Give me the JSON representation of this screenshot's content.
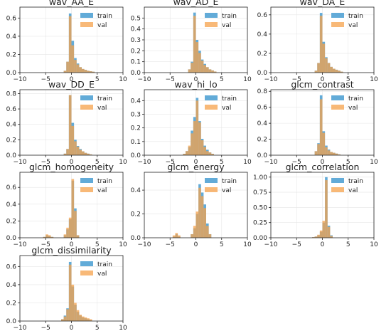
{
  "figure": {
    "colors": {
      "train": "#5aa7d6",
      "val": "#f5a24b"
    }
  },
  "chart_data": [
    {
      "type": "histogram",
      "title": "wav_AA_E",
      "xlim": [
        -10,
        10
      ],
      "ylim": [
        0,
        0.72
      ],
      "xticks": [
        "−10",
        "−5",
        "0",
        "5",
        "10"
      ],
      "yticks": [
        "0.0",
        "0.2",
        "0.4",
        "0.6"
      ],
      "grid": true,
      "legend_position": "upper-right",
      "bin_start": -1.5,
      "bin_width": 0.5,
      "series": [
        {
          "name": "train",
          "values": [
            0.02,
            0.12,
            0.65,
            0.35,
            0.16,
            0.1,
            0.06,
            0.04,
            0.03,
            0.02,
            0.015,
            0.01
          ]
        },
        {
          "name": "val",
          "values": [
            0.02,
            0.12,
            0.62,
            0.3,
            0.14,
            0.09,
            0.06,
            0.04,
            0.03,
            0.02,
            0.015,
            0.01
          ]
        }
      ]
    },
    {
      "type": "histogram",
      "title": "wav_AD_E",
      "xlim": [
        -10,
        10
      ],
      "ylim": [
        0,
        0.6
      ],
      "xticks": [
        "−10",
        "−5",
        "0",
        "5",
        "10"
      ],
      "yticks": [
        "0.0",
        "0.1",
        "0.2",
        "0.3",
        "0.4",
        "0.5"
      ],
      "grid": true,
      "legend_position": "upper-right",
      "bin_start": -1.5,
      "bin_width": 0.5,
      "series": [
        {
          "name": "train",
          "values": [
            0.03,
            0.1,
            0.55,
            0.3,
            0.2,
            0.12,
            0.08,
            0.05,
            0.03,
            0.02,
            0.01
          ]
        },
        {
          "name": "val",
          "values": [
            0.03,
            0.09,
            0.52,
            0.28,
            0.18,
            0.11,
            0.07,
            0.05,
            0.03,
            0.02,
            0.01
          ]
        }
      ]
    },
    {
      "type": "histogram",
      "title": "wav_DA_E",
      "xlim": [
        -10,
        10
      ],
      "ylim": [
        0,
        0.68
      ],
      "xticks": [
        "−10",
        "−5",
        "0",
        "5",
        "10"
      ],
      "yticks": [
        "0.0",
        "0.2",
        "0.4",
        "0.6"
      ],
      "grid": true,
      "legend_position": "upper-right",
      "bin_start": -1.5,
      "bin_width": 0.5,
      "series": [
        {
          "name": "train",
          "values": [
            0.02,
            0.1,
            0.62,
            0.32,
            0.16,
            0.1,
            0.06,
            0.04,
            0.03,
            0.02,
            0.01
          ]
        },
        {
          "name": "val",
          "values": [
            0.02,
            0.1,
            0.59,
            0.3,
            0.15,
            0.1,
            0.06,
            0.04,
            0.03,
            0.02,
            0.01
          ]
        }
      ]
    },
    {
      "type": "histogram",
      "title": "wav_DD_E",
      "xlim": [
        -10,
        10
      ],
      "ylim": [
        0,
        0.85
      ],
      "xticks": [
        "−10",
        "−5",
        "0",
        "5",
        "10"
      ],
      "yticks": [
        "0.0",
        "0.2",
        "0.4",
        "0.6",
        "0.8"
      ],
      "grid": true,
      "legend_position": "upper-right",
      "bin_start": -1.5,
      "bin_width": 0.5,
      "series": [
        {
          "name": "train",
          "values": [
            0.02,
            0.08,
            0.78,
            0.42,
            0.2,
            0.12,
            0.08,
            0.05,
            0.03,
            0.02,
            0.01
          ]
        },
        {
          "name": "val",
          "values": [
            0.02,
            0.08,
            0.78,
            0.38,
            0.18,
            0.11,
            0.07,
            0.05,
            0.03,
            0.02,
            0.01
          ]
        }
      ]
    },
    {
      "type": "histogram",
      "title": "wav_hi_lo",
      "xlim": [
        -10,
        10
      ],
      "ylim": [
        0,
        0.48
      ],
      "xticks": [
        "−10",
        "−5",
        "0",
        "5",
        "10"
      ],
      "yticks": [
        "0.0",
        "0.1",
        "0.2",
        "0.3",
        "0.4"
      ],
      "grid": true,
      "legend_position": "upper-right",
      "bin_start": -2.5,
      "bin_width": 0.5,
      "series": [
        {
          "name": "train",
          "values": [
            0.01,
            0.03,
            0.06,
            0.18,
            0.28,
            0.42,
            0.25,
            0.12,
            0.07,
            0.04,
            0.02,
            0.01
          ]
        },
        {
          "name": "val",
          "values": [
            0.01,
            0.03,
            0.07,
            0.16,
            0.25,
            0.4,
            0.24,
            0.11,
            0.06,
            0.03,
            0.02,
            0.01
          ]
        }
      ]
    },
    {
      "type": "histogram",
      "title": "glcm_contrast",
      "xlim": [
        -10,
        10
      ],
      "ylim": [
        0,
        0.82
      ],
      "xticks": [
        "−10",
        "−5",
        "0",
        "5",
        "10"
      ],
      "yticks": [
        "0.0",
        "0.2",
        "0.4",
        "0.6",
        "0.8"
      ],
      "grid": true,
      "legend_position": "upper-right",
      "bin_start": -1.5,
      "bin_width": 0.5,
      "series": [
        {
          "name": "train",
          "values": [
            0.05,
            0.15,
            0.75,
            0.3,
            0.12,
            0.07,
            0.04,
            0.03,
            0.02,
            0.01
          ]
        },
        {
          "name": "val",
          "values": [
            0.05,
            0.14,
            0.7,
            0.28,
            0.1,
            0.06,
            0.04,
            0.03,
            0.02,
            0.01
          ]
        }
      ]
    },
    {
      "type": "histogram",
      "title": "glcm_homogeneity",
      "xlim": [
        -10,
        10
      ],
      "ylim": [
        0,
        0.78
      ],
      "xticks": [
        "−10",
        "−5",
        "0",
        "5",
        "10"
      ],
      "yticks": [
        "0.0",
        "0.2",
        "0.4",
        "0.6"
      ],
      "grid": true,
      "legend_position": "upper-right",
      "bin_start": -5.5,
      "bin_width": 0.5,
      "series": [
        {
          "name": "train",
          "values": [
            0.01,
            0.03,
            0.02,
            0.01,
            0.0,
            0.0,
            0.0,
            0.0,
            0.03,
            0.1,
            0.22,
            0.68,
            0.35,
            0.03
          ]
        },
        {
          "name": "val",
          "values": [
            0.01,
            0.04,
            0.03,
            0.01,
            0.0,
            0.0,
            0.0,
            0.0,
            0.04,
            0.12,
            0.24,
            0.7,
            0.32,
            0.03
          ]
        }
      ]
    },
    {
      "type": "histogram",
      "title": "glcm_energy",
      "xlim": [
        -10,
        10
      ],
      "ylim": [
        0,
        0.55
      ],
      "xticks": [
        "−10",
        "−5",
        "0",
        "5",
        "10"
      ],
      "yticks": [
        "0.0",
        "0.2",
        "0.4"
      ],
      "grid": true,
      "legend_position": "upper-right",
      "bin_start": -4.5,
      "bin_width": 0.5,
      "series": [
        {
          "name": "train",
          "values": [
            0.01,
            0.03,
            0.01,
            0.0,
            0.0,
            0.0,
            0.0,
            0.03,
            0.08,
            0.2,
            0.45,
            0.38,
            0.28,
            0.12,
            0.03
          ]
        },
        {
          "name": "val",
          "values": [
            0.02,
            0.04,
            0.02,
            0.0,
            0.0,
            0.0,
            0.0,
            0.03,
            0.1,
            0.22,
            0.42,
            0.35,
            0.25,
            0.1,
            0.03
          ]
        }
      ]
    },
    {
      "type": "histogram",
      "title": "glcm_correlation",
      "xlim": [
        -10,
        10
      ],
      "ylim": [
        0,
        1.08
      ],
      "xticks": [
        "−10",
        "−5",
        "0",
        "5",
        "10"
      ],
      "yticks": [
        "0.00",
        "0.25",
        "0.50",
        "0.75",
        "1.00"
      ],
      "grid": true,
      "legend_position": "upper-right",
      "bin_start": -2.0,
      "bin_width": 0.5,
      "series": [
        {
          "name": "train",
          "values": [
            0.01,
            0.02,
            0.04,
            0.1,
            0.25,
            1.0,
            0.2,
            0.04
          ]
        },
        {
          "name": "val",
          "values": [
            0.01,
            0.02,
            0.05,
            0.12,
            0.28,
            0.95,
            0.18,
            0.03
          ]
        }
      ]
    },
    {
      "type": "histogram",
      "title": "glcm_dissimilarity",
      "xlim": [
        -10,
        10
      ],
      "ylim": [
        0,
        0.72
      ],
      "xticks": [
        "−10",
        "−5",
        "0",
        "5",
        "10"
      ],
      "yticks": [
        "0.0",
        "0.2",
        "0.4",
        "0.6"
      ],
      "grid": true,
      "legend_position": "upper-right",
      "bin_start": -2.0,
      "bin_width": 0.5,
      "series": [
        {
          "name": "train",
          "values": [
            0.02,
            0.06,
            0.14,
            0.65,
            0.38,
            0.18,
            0.1,
            0.06,
            0.04,
            0.03,
            0.02,
            0.01
          ]
        },
        {
          "name": "val",
          "values": [
            0.02,
            0.05,
            0.13,
            0.62,
            0.4,
            0.2,
            0.12,
            0.07,
            0.05,
            0.04,
            0.03,
            0.02
          ]
        }
      ]
    }
  ]
}
